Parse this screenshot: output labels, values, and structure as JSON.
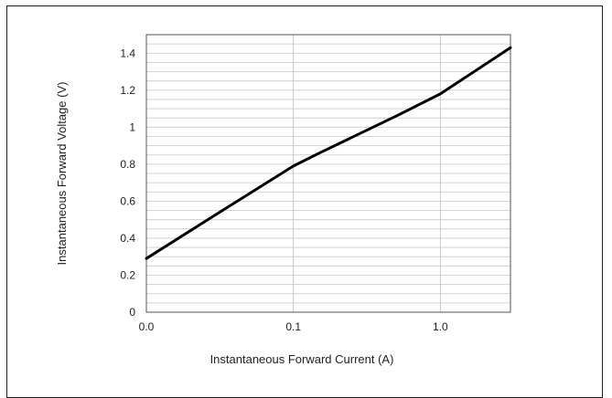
{
  "chart_data": {
    "type": "line",
    "title": "",
    "xlabel": "Instantaneous Forward Current (A)",
    "ylabel": "Instantaneous Forward Voltage (V)",
    "x_scale": "log",
    "xlim": [
      0.01,
      3.0
    ],
    "ylim": [
      0,
      1.5
    ],
    "x_ticks": [
      {
        "value": 0.01,
        "label": "0.0"
      },
      {
        "value": 0.1,
        "label": "0.1"
      },
      {
        "value": 1.0,
        "label": "1.0"
      }
    ],
    "y_ticks": [
      {
        "value": 0,
        "label": "0"
      },
      {
        "value": 0.2,
        "label": "0.2"
      },
      {
        "value": 0.4,
        "label": "0.4"
      },
      {
        "value": 0.6,
        "label": "0.6"
      },
      {
        "value": 0.8,
        "label": "0.8"
      },
      {
        "value": 1.0,
        "label": "1"
      },
      {
        "value": 1.2,
        "label": "1.2"
      },
      {
        "value": 1.4,
        "label": "1.4"
      }
    ],
    "grid": true,
    "series": [
      {
        "color": "#000000",
        "points": [
          {
            "x": 0.01,
            "y": 0.29
          },
          {
            "x": 0.03,
            "y": 0.53
          },
          {
            "x": 0.1,
            "y": 0.79
          },
          {
            "x": 0.15,
            "y": 0.86
          },
          {
            "x": 0.5,
            "y": 1.06
          },
          {
            "x": 1.0,
            "y": 1.18
          },
          {
            "x": 3.0,
            "y": 1.43
          }
        ]
      }
    ]
  }
}
